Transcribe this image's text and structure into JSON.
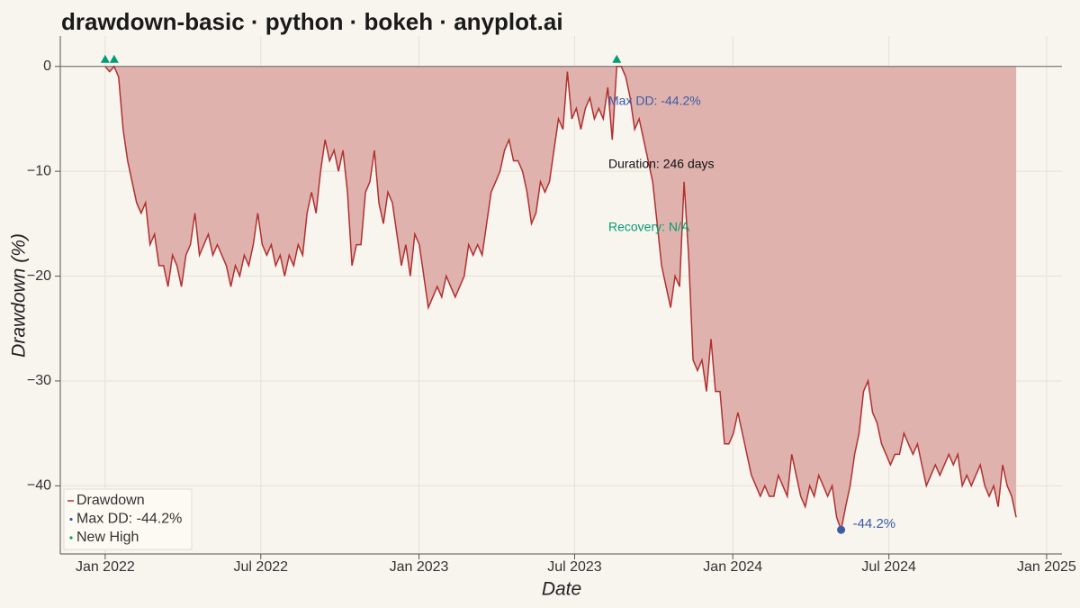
{
  "chart_data": {
    "type": "area",
    "title": "drawdown-basic · python · bokeh · anyplot.ai",
    "x_label": "Date",
    "y_label": "Drawdown (%)",
    "x": [
      2022,
      2022.0143,
      2022.0286,
      2022.0429,
      2022.0572,
      2022.0715,
      2022.0858,
      2022.1001,
      2022.1144,
      2022.1287,
      2022.143,
      2022.1573,
      2022.1716,
      2022.1859,
      2022.2002,
      2022.2145,
      2022.2288,
      2022.2431,
      2022.2574,
      2022.2717,
      2022.286,
      2022.3003,
      2022.3146,
      2022.3289,
      2022.3432,
      2022.3575,
      2022.3718,
      2022.3861,
      2022.4004,
      2022.4147,
      2022.429,
      2022.4433,
      2022.4576,
      2022.4719,
      2022.4862,
      2022.5005,
      2022.5148,
      2022.5291,
      2022.5434,
      2022.5577,
      2022.572,
      2022.5863,
      2022.6006,
      2022.6149,
      2022.6292,
      2022.6435,
      2022.6578,
      2022.6721,
      2022.6864,
      2022.7007,
      2022.715,
      2022.7293,
      2022.7436,
      2022.7579,
      2022.7722,
      2022.7865,
      2022.8008,
      2022.8151,
      2022.8294,
      2022.8437,
      2022.858,
      2022.8723,
      2022.8866,
      2022.9009,
      2022.9152,
      2022.9295,
      2022.9438,
      2022.9581,
      2022.9724,
      2022.9867,
      2023.001,
      2023.0153,
      2023.0296,
      2023.0439,
      2023.0582,
      2023.0725,
      2023.0868,
      2023.1011,
      2023.1154,
      2023.1297,
      2023.144,
      2023.1583,
      2023.1726,
      2023.1869,
      2023.2012,
      2023.2155,
      2023.2298,
      2023.2441,
      2023.2584,
      2023.2727,
      2023.287,
      2023.3013,
      2023.3156,
      2023.3299,
      2023.3442,
      2023.3585,
      2023.3728,
      2023.3871,
      2023.4014,
      2023.4157,
      2023.43,
      2023.4443,
      2023.4586,
      2023.4729,
      2023.4872,
      2023.5015,
      2023.5158,
      2023.5301,
      2023.5444,
      2023.5587,
      2023.573,
      2023.5873,
      2023.6016,
      2023.6159,
      2023.6302,
      2023.6445,
      2023.6588,
      2023.6731,
      2023.6874,
      2023.7017,
      2023.716,
      2023.7303,
      2023.7446,
      2023.7589,
      2023.7732,
      2023.7875,
      2023.8018,
      2023.8161,
      2023.8304,
      2023.8447,
      2023.859,
      2023.8733,
      2023.8876,
      2023.9019,
      2023.9162,
      2023.9305,
      2023.9448,
      2023.9591,
      2023.9734,
      2023.9877,
      2024.002,
      2024.0163,
      2024.0306,
      2024.0449,
      2024.0592,
      2024.0735,
      2024.0878,
      2024.1021,
      2024.1164,
      2024.1307,
      2024.145,
      2024.1593,
      2024.1736,
      2024.1879,
      2024.2022,
      2024.2165,
      2024.2308,
      2024.2451,
      2024.2594,
      2024.2737,
      2024.288,
      2024.3023,
      2024.3166,
      2024.3309,
      2024.3452,
      2024.3595,
      2024.3738,
      2024.3881,
      2024.4024,
      2024.4167,
      2024.431,
      2024.4453,
      2024.4596,
      2024.4739,
      2024.4882,
      2024.5025,
      2024.5168,
      2024.5311,
      2024.5454,
      2024.5597,
      2024.574,
      2024.5883,
      2024.6026,
      2024.6169,
      2024.6312,
      2024.6455,
      2024.6598,
      2024.6741,
      2024.6884,
      2024.7027,
      2024.717,
      2024.7313,
      2024.7456,
      2024.7599,
      2024.7742,
      2024.7885,
      2024.8028,
      2024.8171,
      2024.8314,
      2024.8457,
      2024.86,
      2024.8743,
      2024.8886,
      2024.9029
    ],
    "series": [
      {
        "name": "Drawdown",
        "color": "#b03030",
        "fill": "#e0b2ae",
        "values": [
          0,
          -0.5,
          0,
          -1,
          -6,
          -9,
          -11,
          -13,
          -14,
          -13,
          -17,
          -16,
          -19,
          -19,
          -21,
          -18,
          -19,
          -21,
          -18,
          -17,
          -14,
          -18,
          -17,
          -16,
          -18,
          -17,
          -18,
          -19,
          -21,
          -19,
          -20,
          -18,
          -19,
          -17,
          -14,
          -17,
          -18,
          -17,
          -19,
          -18,
          -20,
          -18,
          -19,
          -17,
          -18,
          -14,
          -12,
          -14,
          -10,
          -7,
          -9,
          -8,
          -10,
          -8,
          -12,
          -19,
          -17,
          -17,
          -12,
          -11,
          -8,
          -13,
          -15,
          -12,
          -13,
          -16,
          -19,
          -17,
          -20,
          -16,
          -17,
          -20,
          -23,
          -22,
          -21,
          -22,
          -20,
          -21,
          -22,
          -21,
          -20,
          -17,
          -18,
          -17,
          -18,
          -15,
          -12,
          -11,
          -10,
          -8,
          -7,
          -9,
          -9,
          -10,
          -12,
          -15,
          -14,
          -11,
          -12,
          -11,
          -8,
          -5,
          -6,
          -0.5,
          -5,
          -4,
          -6,
          -4,
          -3,
          -5,
          -4,
          -5,
          -2,
          -7,
          0,
          0,
          -1,
          -3,
          -6,
          -5,
          -7,
          -9,
          -11,
          -15,
          -19,
          -21,
          -23,
          -20,
          -21,
          -11,
          -18,
          -28,
          -29,
          -28,
          -31,
          -26,
          -31,
          -31,
          -36,
          -36,
          -35,
          -33,
          -35,
          -37,
          -39,
          -40,
          -41,
          -40,
          -41,
          -41,
          -39,
          -40,
          -41,
          -37,
          -39,
          -41,
          -42,
          -40,
          -41,
          -39,
          -40,
          -41,
          -40,
          -43,
          -44.2,
          -42,
          -40,
          -37,
          -35,
          -31,
          -30,
          -33,
          -34,
          -36,
          -37,
          -38,
          -37,
          -37,
          -35,
          -36,
          -37,
          -36,
          -38,
          -40,
          -39,
          -38,
          -39,
          -38,
          -37,
          -38,
          -37,
          -40,
          -39,
          -40,
          -39,
          -38,
          -40,
          -41,
          -40,
          -42,
          -38,
          -40,
          -41,
          -43
        ]
      }
    ],
    "max_dd": {
      "name": "Max DD: -44.2%",
      "color": "#3b5ba5",
      "x": 2024.3452,
      "value": -44.2,
      "value_label": "-44.2%"
    },
    "new_high": {
      "name": "New High",
      "color": "#009e73",
      "x": [
        2022,
        2022.0286,
        2023.6302
      ],
      "values": [
        0,
        0,
        0
      ]
    },
    "annotations": [
      {
        "text": "Max DD: -44.2%",
        "color": "#3b5ba5"
      },
      {
        "text": "Duration: 246 days",
        "color": "#111111"
      },
      {
        "text": "Recovery: N/A",
        "color": "#009e73"
      }
    ],
    "xlim": [
      2021.857,
      2025.049
    ],
    "ylim": [
      -46.5,
      2.9
    ],
    "xticks": [
      {
        "value": 2022,
        "label": "Jan 2022"
      },
      {
        "value": 2022.4959,
        "label": "Jul 2022"
      },
      {
        "value": 2023,
        "label": "Jan 2023"
      },
      {
        "value": 2023.4959,
        "label": "Jul 2023"
      },
      {
        "value": 2024,
        "label": "Jan 2024"
      },
      {
        "value": 2024.4973,
        "label": "Jul 2024"
      },
      {
        "value": 2025,
        "label": "Jan 2025"
      }
    ],
    "yticks": [
      {
        "value": -40,
        "label": "−40"
      },
      {
        "value": -30,
        "label": "−30"
      },
      {
        "value": -20,
        "label": "−20"
      },
      {
        "value": -10,
        "label": "−10"
      },
      0
    ],
    "grid": true,
    "legend": "bottom-left"
  }
}
